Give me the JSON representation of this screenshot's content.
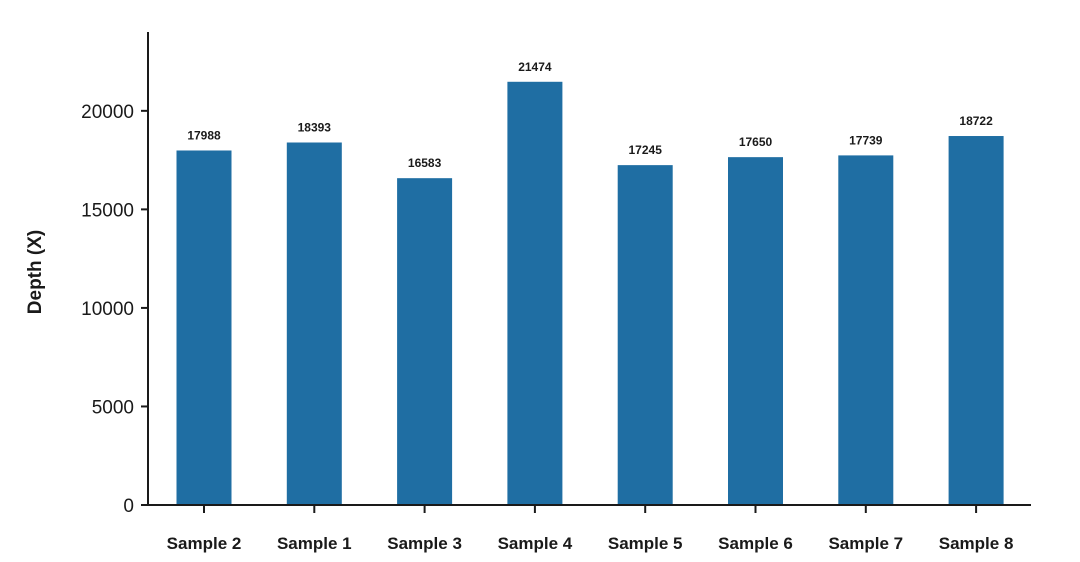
{
  "chart_data": {
    "type": "bar",
    "title": "",
    "xlabel": "",
    "ylabel": "Depth (X)",
    "categories": [
      "Sample 2",
      "Sample 1",
      "Sample 3",
      "Sample 4",
      "Sample 5",
      "Sample 6",
      "Sample 7",
      "Sample 8"
    ],
    "values": [
      17988,
      18393,
      16583,
      21474,
      17245,
      17650,
      17739,
      18722
    ],
    "data_labels": [
      "17988",
      "18393",
      "16583",
      "21474",
      "17245",
      "17650",
      "17739",
      "18722"
    ],
    "yticks": [
      0,
      5000,
      10000,
      15000,
      20000
    ],
    "ylim": [
      0,
      24000
    ],
    "grid": false,
    "legend": "none",
    "bar_color": "#1f6ea3"
  }
}
